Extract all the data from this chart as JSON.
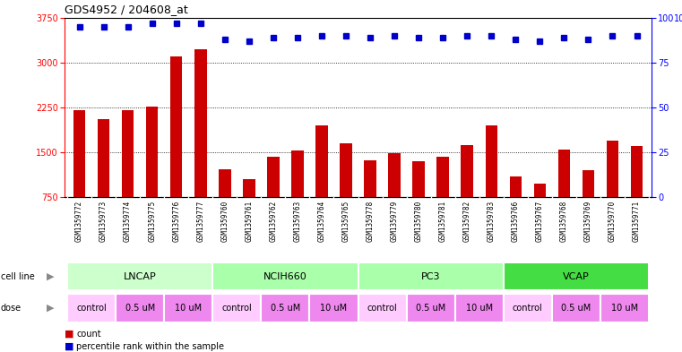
{
  "title": "GDS4952 / 204608_at",
  "samples": [
    "GSM1359772",
    "GSM1359773",
    "GSM1359774",
    "GSM1359775",
    "GSM1359776",
    "GSM1359777",
    "GSM1359760",
    "GSM1359761",
    "GSM1359762",
    "GSM1359763",
    "GSM1359764",
    "GSM1359765",
    "GSM1359778",
    "GSM1359779",
    "GSM1359780",
    "GSM1359781",
    "GSM1359782",
    "GSM1359783",
    "GSM1359766",
    "GSM1359767",
    "GSM1359768",
    "GSM1359769",
    "GSM1359770",
    "GSM1359771"
  ],
  "counts": [
    2200,
    2050,
    2200,
    2270,
    3100,
    3220,
    1220,
    1050,
    1430,
    1530,
    1950,
    1650,
    1370,
    1480,
    1350,
    1420,
    1620,
    1950,
    1100,
    980,
    1540,
    1200,
    1700,
    1600
  ],
  "percentile_ranks": [
    95,
    95,
    95,
    97,
    97,
    97,
    88,
    87,
    89,
    89,
    90,
    90,
    89,
    90,
    89,
    89,
    90,
    90,
    88,
    87,
    89,
    88,
    90,
    90
  ],
  "cell_line_groups": [
    {
      "name": "LNCAP",
      "start": 0,
      "end": 6,
      "color": "#ccffcc"
    },
    {
      "name": "NCIH660",
      "start": 6,
      "end": 12,
      "color": "#aaffaa"
    },
    {
      "name": "PC3",
      "start": 12,
      "end": 18,
      "color": "#aaffaa"
    },
    {
      "name": "VCAP",
      "start": 18,
      "end": 24,
      "color": "#44dd44"
    }
  ],
  "dose_groups": [
    {
      "label": "control",
      "start": 0,
      "end": 2,
      "color": "#ffccff"
    },
    {
      "label": "0.5 uM",
      "start": 2,
      "end": 4,
      "color": "#ee88ee"
    },
    {
      "label": "10 uM",
      "start": 4,
      "end": 6,
      "color": "#ee88ee"
    },
    {
      "label": "control",
      "start": 6,
      "end": 8,
      "color": "#ffccff"
    },
    {
      "label": "0.5 uM",
      "start": 8,
      "end": 10,
      "color": "#ee88ee"
    },
    {
      "label": "10 uM",
      "start": 10,
      "end": 12,
      "color": "#ee88ee"
    },
    {
      "label": "control",
      "start": 12,
      "end": 14,
      "color": "#ffccff"
    },
    {
      "label": "0.5 uM",
      "start": 14,
      "end": 16,
      "color": "#ee88ee"
    },
    {
      "label": "10 uM",
      "start": 16,
      "end": 18,
      "color": "#ee88ee"
    },
    {
      "label": "control",
      "start": 18,
      "end": 20,
      "color": "#ffccff"
    },
    {
      "label": "0.5 uM",
      "start": 20,
      "end": 22,
      "color": "#ee88ee"
    },
    {
      "label": "10 uM",
      "start": 22,
      "end": 24,
      "color": "#ee88ee"
    }
  ],
  "ylim_left": [
    750,
    3750
  ],
  "ylim_right": [
    0,
    100
  ],
  "yticks_left": [
    750,
    1500,
    2250,
    3000,
    3750
  ],
  "yticks_right": [
    0,
    25,
    50,
    75,
    100
  ],
  "bar_color": "#cc0000",
  "dot_color": "#0000cc",
  "bar_width": 0.5
}
